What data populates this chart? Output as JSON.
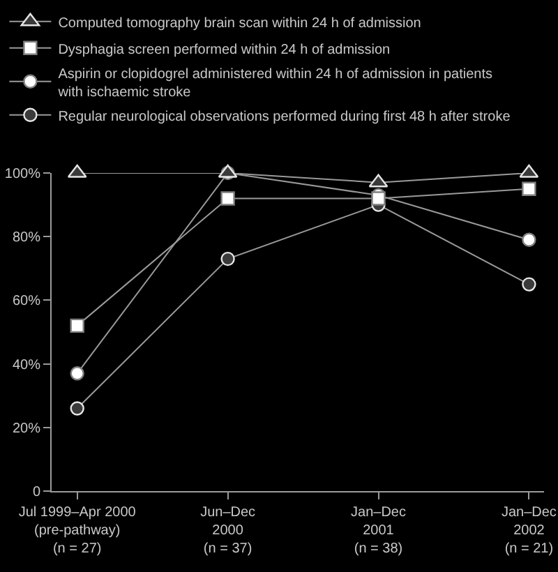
{
  "chart_data": {
    "type": "line",
    "categories": [
      "Jul 1999–Apr 2000\n(pre-pathway)\n(n = 27)",
      "Jun–Dec\n2000\n(n = 37)",
      "Jan–Dec\n2001\n(n = 38)",
      "Jan–Dec\n2002\n(n = 21)"
    ],
    "series": [
      {
        "name": "Computed tomography brain scan within 24 h of admission",
        "color": "#3a3a3a",
        "marker": "triangle",
        "values": [
          100,
          100,
          97,
          100
        ]
      },
      {
        "name": "Dysphagia screen performed within 24 h of admission",
        "color": "#ffffff",
        "marker": "square",
        "values": [
          52,
          92,
          92,
          95
        ]
      },
      {
        "name": "Aspirin or clopidogrel administered within 24 h of admission in patients\nwith ischaemic stroke",
        "color": "#ffffff",
        "marker": "circle",
        "values": [
          37,
          100,
          93,
          79
        ]
      },
      {
        "name": "Regular neurological observations performed during first 48 h after stroke",
        "color": "#3a3a3a",
        "marker": "circle",
        "values": [
          26,
          73,
          90,
          65
        ]
      }
    ],
    "ylim": [
      0,
      100
    ],
    "yticks": [
      0,
      {
        "value": 20,
        "label": "20%"
      },
      {
        "value": 40,
        "label": "40%"
      },
      {
        "value": 60,
        "label": "60%"
      },
      {
        "value": 80,
        "label": "80%"
      },
      {
        "value": 100,
        "label": "100%"
      }
    ],
    "line_style": "solid",
    "legend": "top"
  }
}
